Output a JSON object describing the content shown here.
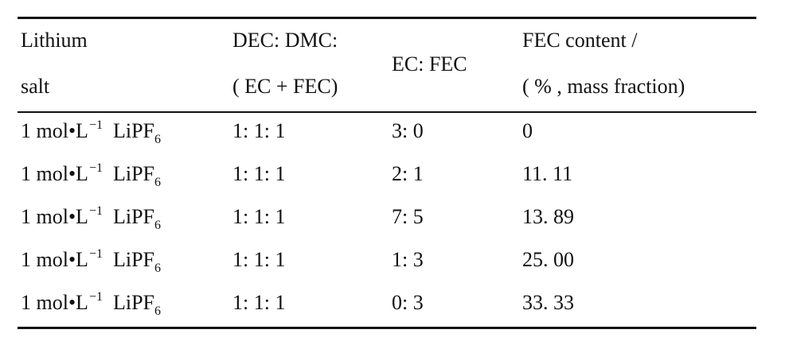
{
  "table": {
    "headers": {
      "lithium_salt": [
        "Lithium",
        "salt"
      ],
      "dec_dmc": [
        "DEC: DMC:",
        "( EC + FEC)"
      ],
      "ec_fec": "EC: FEC",
      "fec_content": [
        "FEC content /",
        "( % , mass fraction)"
      ]
    },
    "rows": [
      {
        "salt": {
          "prefix": "1 mol•L",
          "sup": "−1",
          "name": "LiPF",
          "sub": "6"
        },
        "dec_dmc": "1: 1: 1",
        "ec_fec": "3: 0",
        "fec_content": "0"
      },
      {
        "salt": {
          "prefix": "1 mol•L",
          "sup": "−1",
          "name": "LiPF",
          "sub": "6"
        },
        "dec_dmc": "1: 1: 1",
        "ec_fec": "2: 1",
        "fec_content": "11. 11"
      },
      {
        "salt": {
          "prefix": "1 mol•L",
          "sup": "−1",
          "name": "LiPF",
          "sub": "6"
        },
        "dec_dmc": "1: 1: 1",
        "ec_fec": "7: 5",
        "fec_content": "13. 89"
      },
      {
        "salt": {
          "prefix": "1 mol•L",
          "sup": "−1",
          "name": "LiPF",
          "sub": "6"
        },
        "dec_dmc": "1: 1: 1",
        "ec_fec": "1: 3",
        "fec_content": "25. 00"
      },
      {
        "salt": {
          "prefix": "1 mol•L",
          "sup": "−1",
          "name": "LiPF",
          "sub": "6"
        },
        "dec_dmc": "1: 1: 1",
        "ec_fec": "0: 3",
        "fec_content": "33. 33"
      }
    ]
  }
}
